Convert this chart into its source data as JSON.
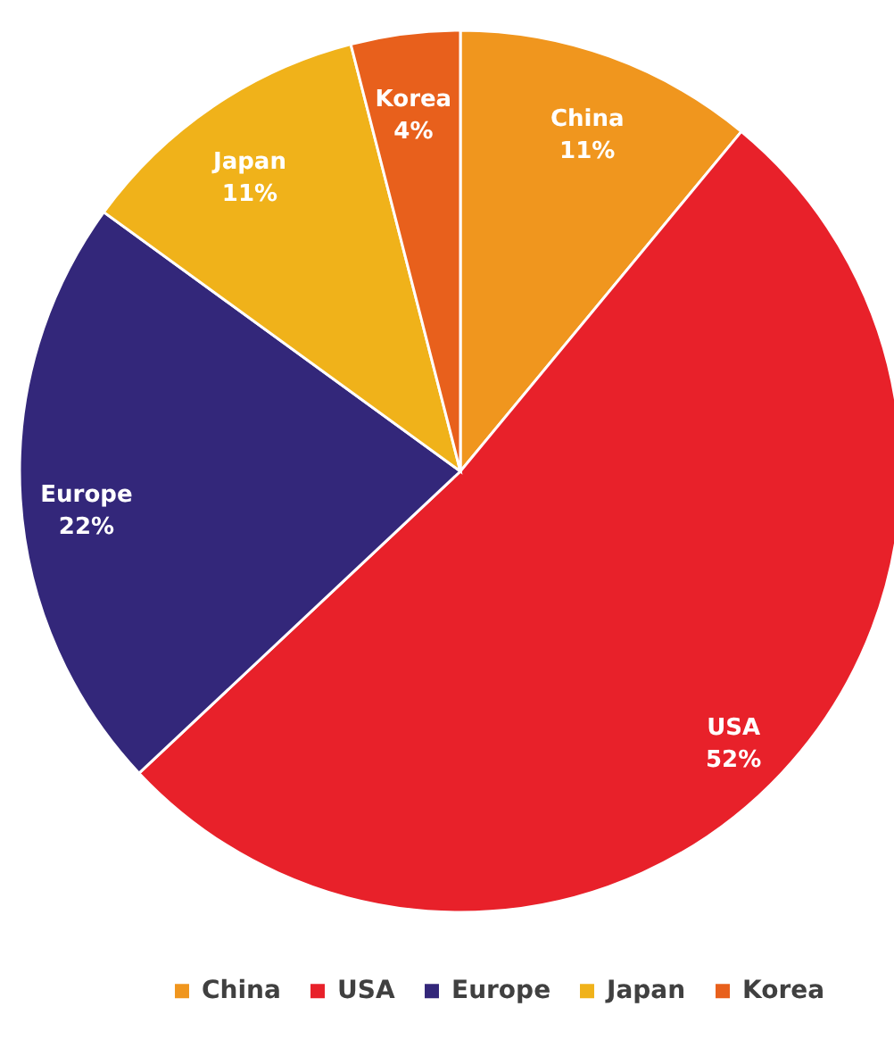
{
  "chart_data": {
    "type": "pie",
    "categories": [
      "China",
      "USA",
      "Europe",
      "Japan",
      "Korea"
    ],
    "values": [
      11,
      52,
      22,
      11,
      4
    ],
    "colors": [
      "#f0961e",
      "#e8212a",
      "#33277a",
      "#f0b21a",
      "#e8601c"
    ],
    "value_labels": [
      "11%",
      "52%",
      "22%",
      "11%",
      "4%"
    ],
    "legend": "bottom"
  }
}
